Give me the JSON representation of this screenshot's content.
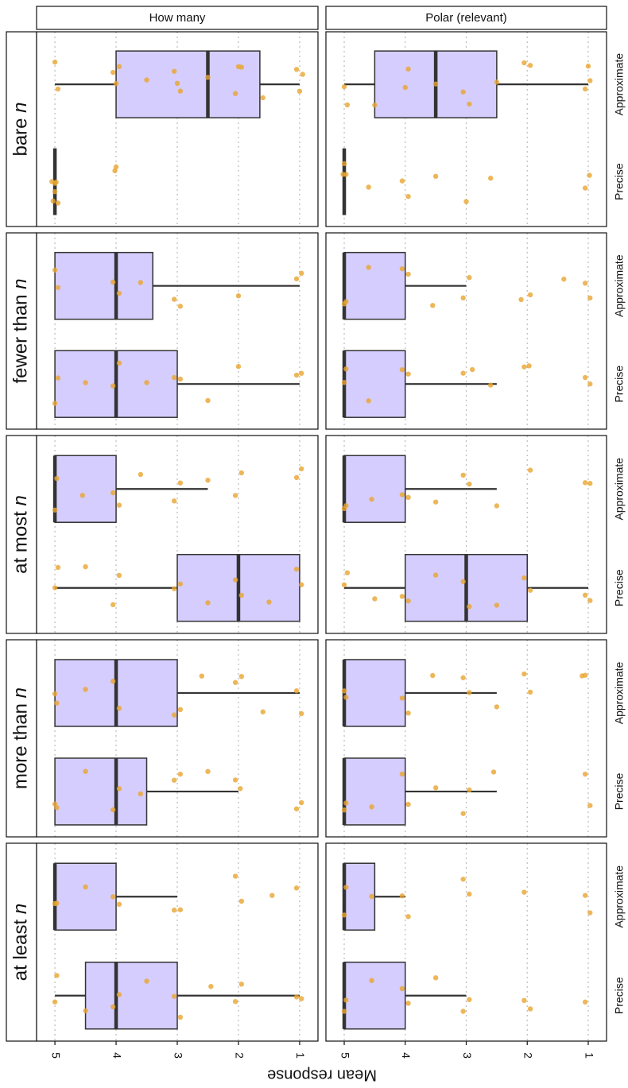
{
  "chart_data": {
    "type": "boxplot",
    "ylabel": "Mean response",
    "columns": [
      "How many",
      "Polar (relevant)"
    ],
    "rows": [
      "bare n",
      "fewer than n",
      "at most n",
      "more than n",
      "at least n"
    ],
    "categories": [
      "Approximate",
      "Precise"
    ],
    "ylim": [
      0.7,
      5.3
    ],
    "yticks": [
      5,
      4,
      3,
      2,
      1
    ],
    "reverse": true,
    "grid": true,
    "box_color": "#d5cdfd",
    "point_color": "#e8a530",
    "panels": [
      [
        [
          {
            "min": 1,
            "q1": 1.65,
            "median": 2.5,
            "q3": 4,
            "max": 5,
            "points": [
              5,
              4.95,
              4.05,
              3.95,
              3.5,
              3.05,
              2.95,
              2.5,
              2.05,
              1.95,
              1.6,
              1.05,
              1,
              0.95,
              4,
              3,
              2
            ]
          },
          {
            "min": 5,
            "q1": 5,
            "median": 5,
            "q3": 5,
            "max": 5,
            "points": [
              5,
              4.98,
              5.03,
              4.95,
              5.05,
              5,
              4.02,
              4
            ]
          }
        ],
        [
          {
            "min": 1,
            "q1": 2.5,
            "median": 3.5,
            "q3": 4.5,
            "max": 5,
            "points": [
              5,
              4.95,
              4.5,
              4,
              3.95,
              3.5,
              3.05,
              2.95,
              2.5,
              2.05,
              1.95,
              1.05,
              1,
              0.97
            ]
          },
          {
            "min": 5,
            "q1": 5,
            "median": 5,
            "q3": 5,
            "max": 5,
            "points": [
              5,
              5.02,
              4.97,
              4.6,
              4.05,
              3.95,
              3.5,
              3,
              2.6,
              1.05,
              0.98
            ]
          }
        ]
      ],
      [
        [
          {
            "min": 1,
            "q1": 3.4,
            "median": 4,
            "q3": 5,
            "max": 5,
            "points": [
              5,
              4.95,
              4.05,
              3.95,
              3.6,
              3.05,
              2.95,
              2,
              1.05,
              0.97
            ]
          },
          {
            "min": 1,
            "q1": 3,
            "median": 4,
            "q3": 5,
            "max": 5,
            "points": [
              5,
              4.95,
              4.5,
              4.05,
              3.95,
              3.5,
              3.05,
              2.95,
              2.5,
              2,
              1.05,
              0.97
            ]
          }
        ],
        [
          {
            "min": 3,
            "q1": 4,
            "median": 5,
            "q3": 5,
            "max": 5,
            "points": [
              5,
              4.97,
              4.6,
              4.05,
              3.95,
              3.55,
              3.05,
              2.95,
              2.1,
              1.95,
              1.4,
              1.05,
              0.97
            ]
          },
          {
            "min": 2.5,
            "q1": 4,
            "median": 5,
            "q3": 5,
            "max": 5,
            "points": [
              5,
              4.97,
              4.6,
              4.05,
              3.95,
              3.05,
              2.9,
              2.6,
              2.05,
              1.97,
              1.05,
              0.97
            ]
          }
        ]
      ],
      [
        [
          {
            "min": 2.5,
            "q1": 4,
            "median": 5,
            "q3": 5,
            "max": 5,
            "points": [
              5,
              4.97,
              4.55,
              4.05,
              3.95,
              3.6,
              3.05,
              2.95,
              2.5,
              2.05,
              1.95,
              1.05,
              0.97
            ]
          },
          {
            "min": 1,
            "q1": 1,
            "median": 2,
            "q3": 3,
            "max": 5,
            "points": [
              5,
              4.95,
              4.5,
              4.05,
              3.95,
              3.05,
              2.95,
              2.5,
              2.05,
              1.95,
              1.5,
              1.05,
              0.97
            ]
          }
        ],
        [
          {
            "min": 2.5,
            "q1": 4,
            "median": 5,
            "q3": 5,
            "max": 5,
            "points": [
              5,
              4.97,
              4.55,
              4.05,
              3.95,
              3.5,
              3.05,
              2.95,
              2.5,
              1.95,
              1.05,
              0.97
            ]
          },
          {
            "min": 1,
            "q1": 2,
            "median": 3,
            "q3": 4,
            "max": 5,
            "points": [
              5,
              4.95,
              4.5,
              4.05,
              3.95,
              3.5,
              3.05,
              2.95,
              2.5,
              2.05,
              1.95,
              1.05,
              0.97
            ]
          }
        ]
      ],
      [
        [
          {
            "min": 1,
            "q1": 3,
            "median": 4,
            "q3": 5,
            "max": 5,
            "points": [
              5,
              4.97,
              4.5,
              4.05,
              3.95,
              3.05,
              2.95,
              2.6,
              2.05,
              1.95,
              1.6,
              1.05,
              0.97
            ]
          },
          {
            "min": 2,
            "q1": 3.5,
            "median": 4,
            "q3": 5,
            "max": 5,
            "points": [
              5,
              4.97,
              4.5,
              4.05,
              3.95,
              3.6,
              3.05,
              2.95,
              2.5,
              2.05,
              1.97,
              1.05,
              0.97
            ]
          }
        ],
        [
          {
            "min": 2.5,
            "q1": 4,
            "median": 5,
            "q3": 5,
            "max": 5,
            "points": [
              5,
              4.97,
              4.05,
              3.95,
              3.55,
              3.05,
              2.95,
              2.5,
              2.05,
              1.95,
              1.1,
              1.05
            ]
          },
          {
            "min": 2.5,
            "q1": 4,
            "median": 5,
            "q3": 5,
            "max": 5,
            "points": [
              5,
              4.97,
              4.55,
              4.05,
              3.95,
              3.5,
              3.05,
              2.95,
              2.55,
              1.05,
              0.97
            ]
          }
        ]
      ],
      [
        [
          {
            "min": 3,
            "q1": 4,
            "median": 5,
            "q3": 5,
            "max": 5,
            "points": [
              5,
              4.97,
              4.5,
              4.05,
              3.95,
              3.05,
              2.95,
              2.05,
              1.95,
              1.45,
              1.05
            ]
          },
          {
            "min": 1,
            "q1": 3,
            "median": 4,
            "q3": 4.5,
            "max": 5,
            "points": [
              5,
              4.97,
              4.5,
              4.05,
              3.95,
              3.5,
              3.05,
              2.95,
              2.45,
              2.05,
              1.95,
              1.05,
              0.97
            ]
          }
        ],
        [
          {
            "min": 4,
            "q1": 4.5,
            "median": 5,
            "q3": 5,
            "max": 5,
            "points": [
              5,
              4.97,
              4.55,
              4.05,
              3.95,
              3.05,
              2.95,
              2.05,
              1.05,
              0.97
            ]
          },
          {
            "min": 3,
            "q1": 4,
            "median": 5,
            "q3": 5,
            "max": 5,
            "points": [
              5,
              4.97,
              4.55,
              4.05,
              3.95,
              3.5,
              3.05,
              2.95,
              2.05,
              1.95,
              1.05
            ]
          }
        ]
      ]
    ]
  }
}
